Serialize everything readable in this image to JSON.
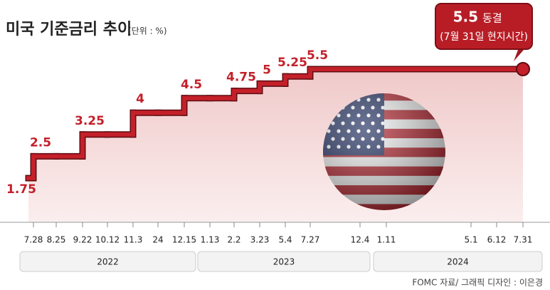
{
  "chart_data": {
    "type": "step",
    "title": "미국 기준금리 추이",
    "unit": "(단위 : %)",
    "categories": [
      "7.28",
      "8.25",
      "9.22",
      "10.12",
      "11.3",
      "24",
      "12.15",
      "1.13",
      "2.2",
      "3.23",
      "5.4",
      "7.27",
      "12.4",
      "1.11",
      "5.1",
      "6.12",
      "7.31"
    ],
    "start_value": 1.75,
    "values": [
      2.5,
      2.5,
      3.25,
      3.25,
      4,
      4,
      4.5,
      4.5,
      4.75,
      5,
      5.25,
      5.5,
      5.5,
      5.5,
      5.5,
      5.5,
      5.5
    ],
    "color": "#c4202a",
    "year_groups": [
      "2022",
      "2023",
      "2024"
    ],
    "annotation": {
      "status": "동결",
      "note": "(7월 31일 현지시간)"
    },
    "source": "FOMC 자료/ 그래픽 디자인 : 이은경"
  }
}
